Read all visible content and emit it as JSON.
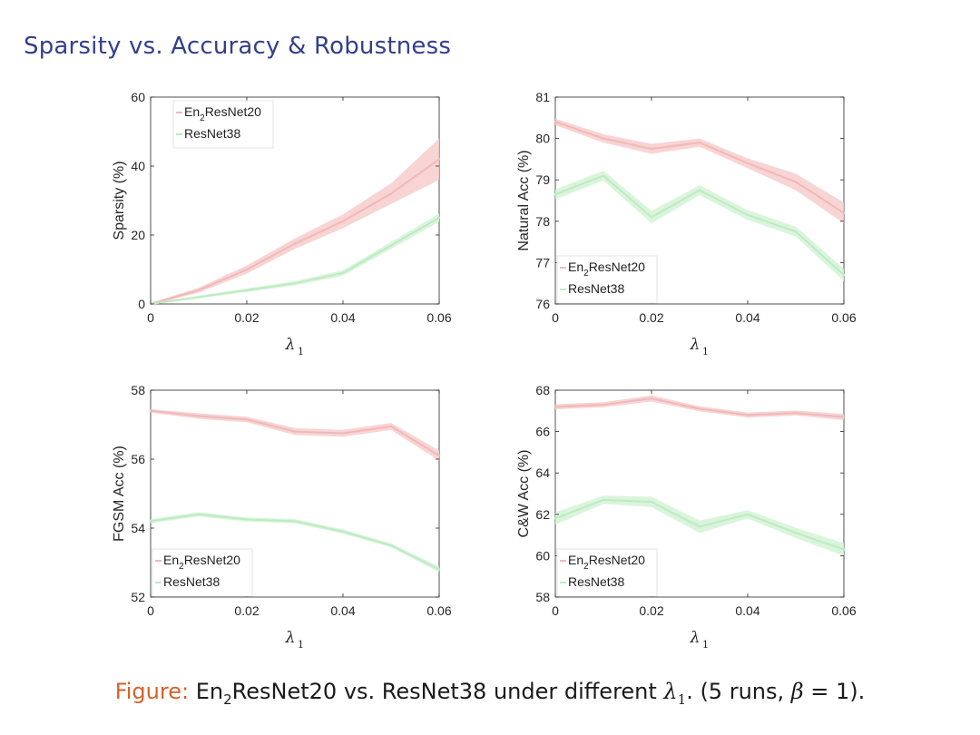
{
  "slide": {
    "title": "Sparsity vs. Accuracy & Robustness"
  },
  "caption": {
    "label": "Figure:",
    "model_a_pre": "En",
    "model_a_sub": "2",
    "model_a_post": "ResNet20",
    "vs": " vs. ResNet38 under different ",
    "lambda": "λ",
    "lambda_sub": "1",
    "runs_pre": ". (5 runs, ",
    "beta": "β",
    "eq": " = 1).",
    "runs_post": ""
  },
  "colors": {
    "series_a_line": "#f2b8b8",
    "series_a_band": "#f7cccc",
    "series_b_line": "#bdebc2",
    "series_b_band": "#d3f3d6",
    "axis": "#262626",
    "title": "#333f8c"
  },
  "chart_data": [
    {
      "type": "line",
      "ylabel": "Sparsity (%)",
      "xlabel": "λ",
      "xlabel_sub": "1",
      "xlim": [
        0,
        0.06
      ],
      "ylim": [
        0,
        60
      ],
      "xticks": [
        0,
        0.02,
        0.04,
        0.06
      ],
      "xtick_labels": [
        "0",
        "0.02",
        "0.04",
        "0.06"
      ],
      "yticks": [
        0,
        20,
        40,
        60
      ],
      "ytick_labels": [
        "0",
        "20",
        "40",
        "60"
      ],
      "legend_position": "top-left",
      "x": [
        0,
        0.01,
        0.02,
        0.03,
        0.04,
        0.05,
        0.06
      ],
      "series": [
        {
          "name": "En2ResNet20",
          "legend_pre": "En",
          "legend_sub": "2",
          "legend_post": "ResNet20",
          "values": [
            0,
            4,
            10,
            17.5,
            24,
            32,
            42
          ],
          "spread": [
            0.3,
            0.7,
            1.2,
            1.5,
            2,
            3,
            6
          ]
        },
        {
          "name": "ResNet38",
          "legend_pre": "ResNet38",
          "legend_sub": "",
          "legend_post": "",
          "values": [
            0,
            2,
            4,
            6,
            9,
            17,
            25
          ],
          "spread": [
            0.2,
            0.4,
            0.5,
            0.6,
            0.8,
            1,
            1.2
          ]
        }
      ]
    },
    {
      "type": "line",
      "ylabel": "Natural Acc (%)",
      "xlabel": "λ",
      "xlabel_sub": "1",
      "xlim": [
        0,
        0.06
      ],
      "ylim": [
        76,
        81
      ],
      "xticks": [
        0,
        0.02,
        0.04,
        0.06
      ],
      "xtick_labels": [
        "0",
        "0.02",
        "0.04",
        "0.06"
      ],
      "yticks": [
        76,
        77,
        78,
        79,
        80,
        81
      ],
      "ytick_labels": [
        "76",
        "77",
        "78",
        "79",
        "80",
        "81"
      ],
      "legend_position": "bottom-left",
      "x": [
        0,
        0.01,
        0.02,
        0.03,
        0.04,
        0.05,
        0.06
      ],
      "series": [
        {
          "name": "En2ResNet20",
          "legend_pre": "En",
          "legend_sub": "2",
          "legend_post": "ResNet20",
          "values": [
            80.4,
            80.0,
            79.75,
            79.9,
            79.4,
            78.95,
            78.2
          ],
          "spread": [
            0.08,
            0.1,
            0.12,
            0.1,
            0.12,
            0.2,
            0.25
          ]
        },
        {
          "name": "ResNet38",
          "legend_pre": "ResNet38",
          "legend_sub": "",
          "legend_post": "",
          "values": [
            78.65,
            79.1,
            78.1,
            78.75,
            78.15,
            77.75,
            76.7
          ],
          "spread": [
            0.12,
            0.12,
            0.15,
            0.12,
            0.12,
            0.12,
            0.15
          ]
        }
      ]
    },
    {
      "type": "line",
      "ylabel": "FGSM Acc (%)",
      "xlabel": "λ",
      "xlabel_sub": "1",
      "xlim": [
        0,
        0.06
      ],
      "ylim": [
        52,
        58
      ],
      "xticks": [
        0,
        0.02,
        0.04,
        0.06
      ],
      "xtick_labels": [
        "0",
        "0.02",
        "0.04",
        "0.06"
      ],
      "yticks": [
        52,
        54,
        56,
        58
      ],
      "ytick_labels": [
        "52",
        "54",
        "56",
        "58"
      ],
      "legend_position": "bottom-left",
      "x": [
        0,
        0.01,
        0.02,
        0.03,
        0.04,
        0.05,
        0.06
      ],
      "series": [
        {
          "name": "En2ResNet20",
          "legend_pre": "En",
          "legend_sub": "2",
          "legend_post": "ResNet20",
          "values": [
            57.4,
            57.25,
            57.15,
            56.8,
            56.75,
            56.95,
            56.1
          ],
          "spread": [
            0.05,
            0.08,
            0.08,
            0.1,
            0.1,
            0.1,
            0.15
          ]
        },
        {
          "name": "ResNet38",
          "legend_pre": "ResNet38",
          "legend_sub": "",
          "legend_post": "",
          "values": [
            54.2,
            54.4,
            54.25,
            54.2,
            53.9,
            53.5,
            52.8
          ],
          "spread": [
            0.06,
            0.06,
            0.06,
            0.06,
            0.06,
            0.06,
            0.08
          ]
        }
      ]
    },
    {
      "type": "line",
      "ylabel": "C&W Acc (%)",
      "xlabel": "λ",
      "xlabel_sub": "1",
      "xlim": [
        0,
        0.06
      ],
      "ylim": [
        58,
        68
      ],
      "xticks": [
        0,
        0.02,
        0.04,
        0.06
      ],
      "xtick_labels": [
        "0",
        "0.02",
        "0.04",
        "0.06"
      ],
      "yticks": [
        58,
        60,
        62,
        64,
        66,
        68
      ],
      "ytick_labels": [
        "58",
        "60",
        "62",
        "64",
        "66",
        "68"
      ],
      "legend_position": "bottom-left",
      "x": [
        0,
        0.01,
        0.02,
        0.03,
        0.04,
        0.05,
        0.06
      ],
      "series": [
        {
          "name": "En2ResNet20",
          "legend_pre": "En",
          "legend_sub": "2",
          "legend_post": "ResNet20",
          "values": [
            67.2,
            67.3,
            67.6,
            67.1,
            66.8,
            66.9,
            66.7
          ],
          "spread": [
            0.12,
            0.12,
            0.15,
            0.12,
            0.12,
            0.12,
            0.15
          ]
        },
        {
          "name": "ResNet38",
          "legend_pre": "ResNet38",
          "legend_sub": "",
          "legend_post": "",
          "values": [
            61.8,
            62.7,
            62.6,
            61.4,
            62.0,
            61.1,
            60.3
          ],
          "spread": [
            0.3,
            0.2,
            0.25,
            0.3,
            0.2,
            0.25,
            0.3
          ]
        }
      ]
    }
  ]
}
